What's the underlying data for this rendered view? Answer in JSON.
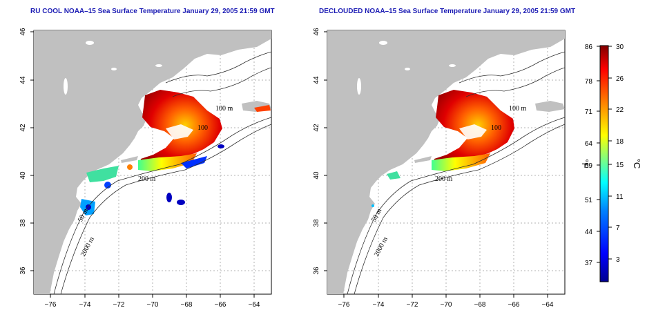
{
  "panels": [
    {
      "id": "left",
      "title": "RU COOL NOAA–15 Sea Surface Temperature January 29, 2005 21:59 GMT",
      "contour_labels": [
        "100 m",
        "200 m",
        "50 m",
        "2000 m",
        "100"
      ]
    },
    {
      "id": "right",
      "title": "DECLOUDED NOAA–15 Sea Surface Temperature January 29, 2005 21:59 GMT",
      "contour_labels": [
        "100 m",
        "200 m",
        "50 m",
        "2000 m",
        "100"
      ]
    }
  ],
  "axes": {
    "lon_ticks": [
      "−76",
      "−74",
      "−72",
      "−70",
      "−68",
      "−66",
      "−64"
    ],
    "lat_ticks": [
      "46",
      "44",
      "42",
      "40",
      "38",
      "36"
    ]
  },
  "colorbar": {
    "fahrenheit_unit": "°F",
    "celsius_unit": "°C",
    "fahrenheit_ticks": [
      "86",
      "78",
      "71",
      "64",
      "59",
      "51",
      "44",
      "37"
    ],
    "celsius_ticks": [
      "30",
      "26",
      "22",
      "18",
      "15",
      "11",
      "7",
      "3"
    ],
    "colors": [
      "#00008f",
      "#0000ff",
      "#0080ff",
      "#00ffff",
      "#80ff80",
      "#ffff00",
      "#ff8000",
      "#ff0000",
      "#800000"
    ]
  },
  "colors": {
    "land": "#c0c0c0",
    "title": "#1c1cb4",
    "grid": "#b0b0b0"
  }
}
